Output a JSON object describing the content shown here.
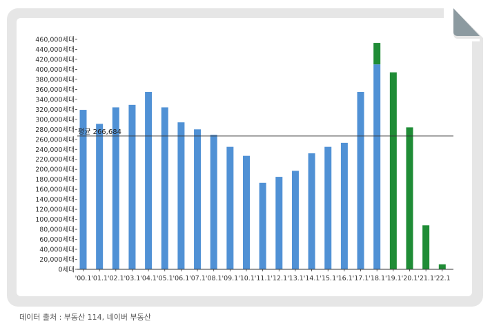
{
  "colors": {
    "actual": "#5091d5",
    "forecast": "#1f8c36",
    "average_line": "#333333",
    "axis": "#333333",
    "frame": "#e6e6e6",
    "curl": "#8c9aa0"
  },
  "source_note": "데이터 출처 : 부동산 114, 네이버 부동산",
  "chart_data": {
    "type": "bar",
    "title": "",
    "xlabel": "",
    "ylabel": "",
    "ylim": [
      0,
      460000
    ],
    "ytick_step": 20000,
    "ytick_suffix": "세대",
    "categories": [
      "'00.1",
      "'01.1",
      "'02.1",
      "'03.1",
      "'04.1",
      "'05.1",
      "'06.1",
      "'07.1",
      "'08.1",
      "'09.1",
      "'10.1",
      "'11.1",
      "'12.1",
      "'13.1",
      "'14.1",
      "'15.1",
      "'16.1",
      "'17.1",
      "'18.1",
      "'19.1",
      "'20.1",
      "'21.1",
      "'22.1"
    ],
    "series": [
      {
        "role": "actual",
        "values": [
          319000,
          291000,
          324000,
          329000,
          355000,
          324000,
          294000,
          280000,
          269000,
          245000,
          227000,
          173000,
          185000,
          197000,
          232000,
          245000,
          253000,
          355000,
          410000,
          0,
          0,
          0,
          0
        ]
      },
      {
        "role": "forecast",
        "values": [
          0,
          0,
          0,
          0,
          0,
          0,
          0,
          0,
          0,
          0,
          0,
          0,
          0,
          0,
          0,
          0,
          0,
          0,
          43000,
          394000,
          284000,
          88000,
          10000
        ]
      }
    ],
    "average": {
      "label": "평균 266,684",
      "value": 266684
    },
    "grid": false,
    "legend": "none"
  }
}
